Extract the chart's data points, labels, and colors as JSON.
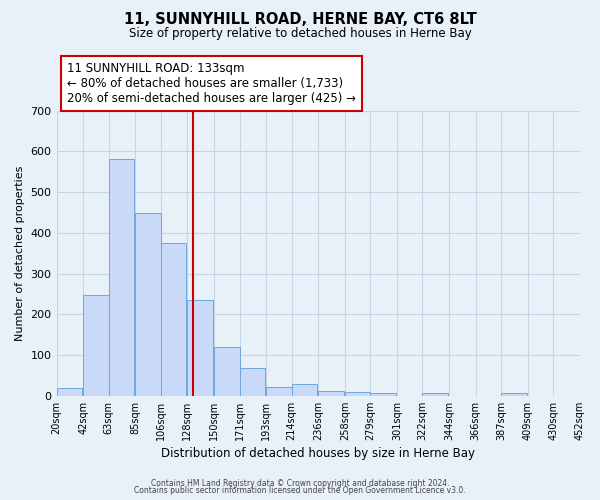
{
  "title": "11, SUNNYHILL ROAD, HERNE BAY, CT6 8LT",
  "subtitle": "Size of property relative to detached houses in Herne Bay",
  "xlabel": "Distribution of detached houses by size in Herne Bay",
  "ylabel": "Number of detached properties",
  "bar_left_edges": [
    20,
    42,
    63,
    85,
    106,
    128,
    150,
    171,
    193,
    214,
    236,
    258,
    279,
    301,
    322,
    344,
    366,
    387,
    409,
    430
  ],
  "bar_heights": [
    18,
    248,
    582,
    449,
    375,
    236,
    120,
    68,
    22,
    30,
    13,
    10,
    8,
    0,
    8,
    0,
    0,
    6,
    0,
    0
  ],
  "bin_width": 21,
  "bar_color": "#c9daf8",
  "bar_edge_color": "#6fa8dc",
  "vline_x": 133,
  "vline_color": "#cc0000",
  "ylim": [
    0,
    700
  ],
  "yticks": [
    0,
    100,
    200,
    300,
    400,
    500,
    600,
    700
  ],
  "xtick_labels": [
    "20sqm",
    "42sqm",
    "63sqm",
    "85sqm",
    "106sqm",
    "128sqm",
    "150sqm",
    "171sqm",
    "193sqm",
    "214sqm",
    "236sqm",
    "258sqm",
    "279sqm",
    "301sqm",
    "322sqm",
    "344sqm",
    "366sqm",
    "387sqm",
    "409sqm",
    "430sqm",
    "452sqm"
  ],
  "annotation_title": "11 SUNNYHILL ROAD: 133sqm",
  "annotation_line1": "← 80% of detached houses are smaller (1,733)",
  "annotation_line2": "20% of semi-detached houses are larger (425) →",
  "annotation_box_color": "#ffffff",
  "annotation_box_edge": "#cc0000",
  "grid_color": "#c5d5e8",
  "bg_color": "#e8f0f8",
  "footer1": "Contains HM Land Registry data © Crown copyright and database right 2024.",
  "footer2": "Contains public sector information licensed under the Open Government Licence v3.0."
}
